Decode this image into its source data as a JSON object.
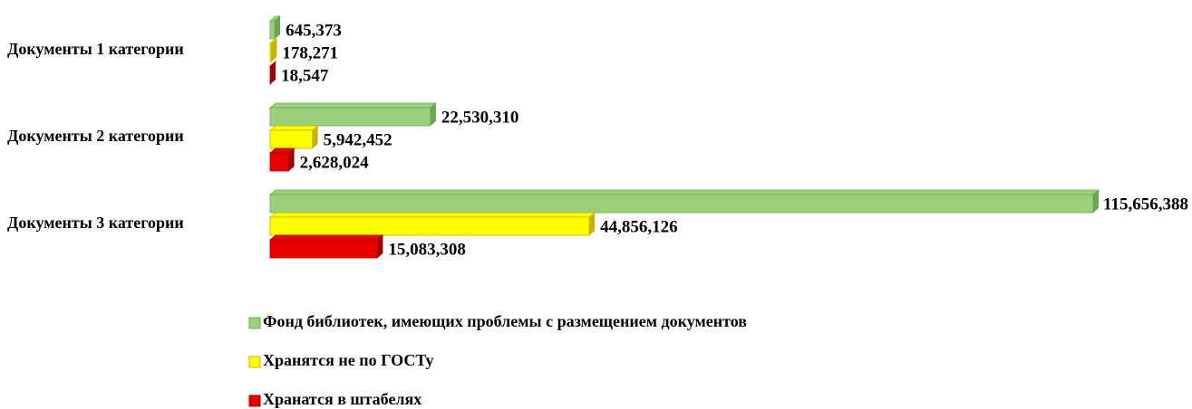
{
  "chart_data": {
    "type": "bar",
    "orientation": "horizontal",
    "categories": [
      "Документы 1 категории",
      "Документы 2 категории",
      "Документы 3 категории"
    ],
    "series": [
      {
        "name": "Фонд библиотек, имеющих проблемы с размещением документов",
        "color": "#9bd07d",
        "values": [
          645373,
          22530310,
          115656388
        ],
        "value_labels": [
          "645,373",
          "22,530,310",
          "115,656,388"
        ]
      },
      {
        "name": "Хранятся не по ГОСТу",
        "color": "#ffff00",
        "values": [
          178271,
          5942452,
          44856126
        ],
        "value_labels": [
          "178,271",
          "5,942,452",
          "44,856,126"
        ]
      },
      {
        "name": "Хранатся в штабелях",
        "color": "#e60000",
        "values": [
          18547,
          2628024,
          15083308
        ],
        "value_labels": [
          "18,547",
          "2,628,024",
          "15,083,308"
        ]
      }
    ]
  }
}
